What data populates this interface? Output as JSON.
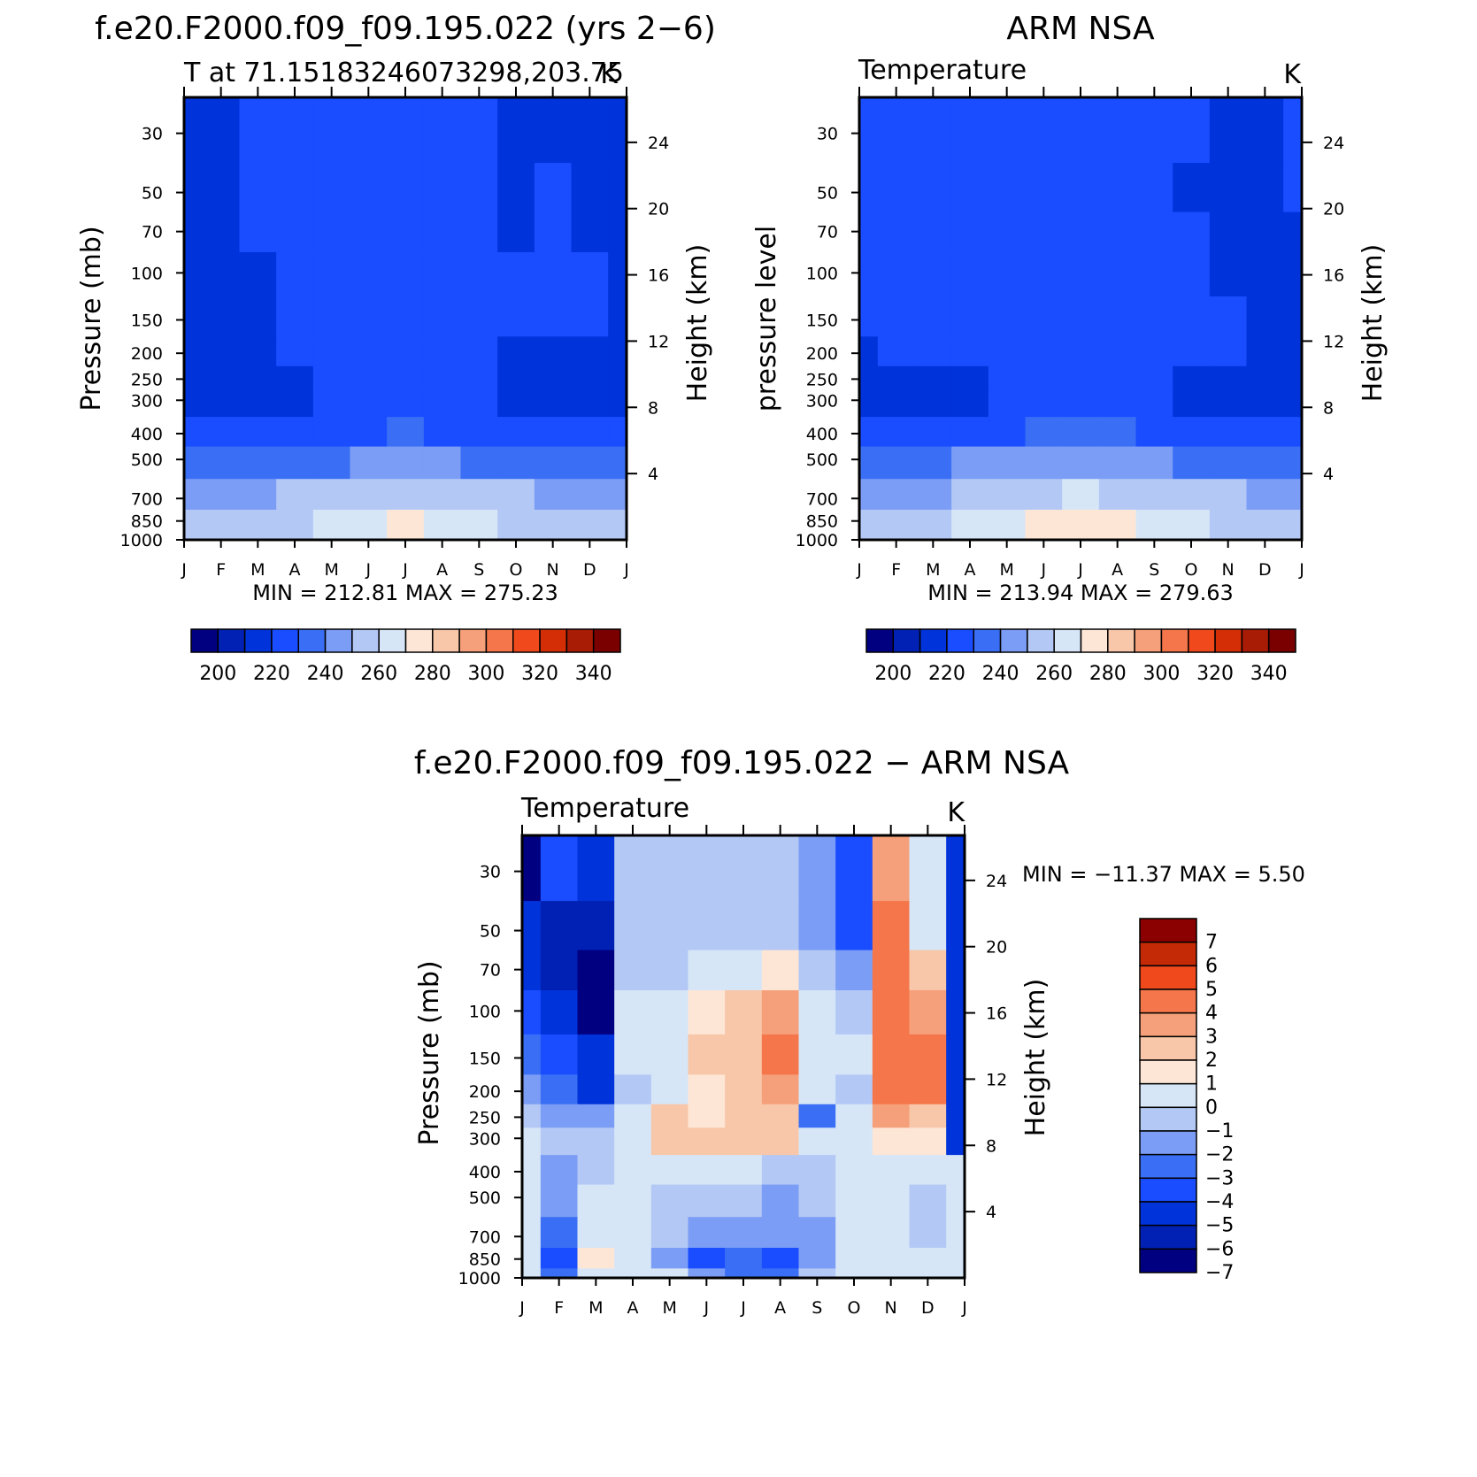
{
  "colors": {
    "temp_palette": [
      "#000080",
      "#0021b3",
      "#0033d9",
      "#1a4dff",
      "#3a6ff5",
      "#7b9df5",
      "#b3c8f5",
      "#d6e6f7",
      "#fde6d6",
      "#f8c6a8",
      "#f5a07a",
      "#f5764a",
      "#f04a1c",
      "#d42e06",
      "#a81c06",
      "#7a0000"
    ],
    "diff_palette": [
      "#000080",
      "#0021b3",
      "#0033d9",
      "#1a4dff",
      "#3a6ff5",
      "#7b9df5",
      "#b3c8f5",
      "#d6e6f7",
      "#fde6d6",
      "#f8c6a8",
      "#f5a07a",
      "#f5764a",
      "#f04a1c",
      "#c42a06",
      "#8b0000"
    ]
  },
  "chart_data": [
    {
      "id": "model",
      "type": "heatmap",
      "main_title": "f.e20.F2000.f09_f09.195.022 (yrs 2−6)",
      "subtitle": "T at 71.15183246073298,203.75",
      "units": "K",
      "ylabel_left": "Pressure (mb)",
      "ylabel_right": "Height (km)",
      "stats": "MIN = 212.81 MAX = 275.23",
      "months": [
        "J",
        "F",
        "M",
        "A",
        "M",
        "J",
        "J",
        "A",
        "S",
        "O",
        "N",
        "D",
        "J"
      ],
      "pressure_ticks": [
        "30",
        "50",
        "70",
        "100",
        "150",
        "200",
        "250",
        "300",
        "400",
        "500",
        "700",
        "850",
        "1000"
      ],
      "height_ticks": [
        "24",
        "20",
        "16",
        "12",
        "8",
        "4"
      ],
      "colorbar_labels": [
        "200",
        "220",
        "240",
        "260",
        "280",
        "300",
        "320",
        "340"
      ],
      "levels": [
        190,
        200,
        210,
        220,
        230,
        240,
        250,
        260,
        270,
        280,
        290,
        300,
        310,
        320,
        330,
        340,
        350
      ],
      "pressure_levels": [
        30,
        50,
        70,
        100,
        150,
        200,
        250,
        300,
        400,
        500,
        700,
        850,
        1000
      ],
      "values": [
        [
          217,
          218,
          221,
          221,
          221,
          221,
          221,
          221,
          220,
          219,
          218,
          217,
          217
        ],
        [
          216,
          217,
          220,
          221,
          221,
          221,
          221,
          221,
          221,
          219,
          220,
          218,
          216
        ],
        [
          216,
          217,
          220,
          221,
          221,
          221,
          221,
          221,
          221,
          219,
          221,
          219,
          216
        ],
        [
          216,
          216,
          219,
          221,
          221,
          221,
          221,
          221,
          221,
          220,
          221,
          220,
          216
        ],
        [
          216,
          216,
          219,
          221,
          221,
          221,
          221,
          221,
          221,
          220,
          220,
          221,
          216
        ],
        [
          216,
          216,
          218,
          221,
          221,
          221,
          221,
          221,
          221,
          219,
          218,
          218,
          216
        ],
        [
          216,
          216,
          217,
          219,
          221,
          221,
          221,
          221,
          220,
          218,
          217,
          217,
          216
        ],
        [
          216,
          216,
          217,
          218,
          221,
          222,
          223,
          222,
          220,
          218,
          218,
          218,
          217
        ],
        [
          223,
          224,
          225,
          226,
          228,
          229,
          231,
          229,
          227,
          226,
          225,
          224,
          223
        ],
        [
          234,
          233,
          235,
          237,
          239,
          241,
          243,
          241,
          239,
          237,
          236,
          235,
          234
        ],
        [
          247,
          245,
          248,
          250,
          253,
          256,
          258,
          256,
          253,
          250,
          249,
          248,
          247
        ],
        [
          252,
          251,
          254,
          257,
          262,
          267,
          272,
          267,
          262,
          259,
          253,
          252,
          252
        ],
        [
          254,
          250,
          253,
          256,
          263,
          267,
          271,
          266,
          263,
          258,
          254,
          253,
          254
        ]
      ]
    },
    {
      "id": "obs",
      "type": "heatmap",
      "main_title": "ARM NSA",
      "subtitle": "Temperature",
      "units": "K",
      "ylabel_left": "pressure level",
      "ylabel_right": "Height (km)",
      "stats": "MIN = 213.94 MAX = 279.63",
      "months": [
        "J",
        "F",
        "M",
        "A",
        "M",
        "J",
        "J",
        "A",
        "S",
        "O",
        "N",
        "D",
        "J"
      ],
      "pressure_ticks": [
        "30",
        "50",
        "70",
        "100",
        "150",
        "200",
        "250",
        "300",
        "400",
        "500",
        "700",
        "850",
        "1000"
      ],
      "height_ticks": [
        "24",
        "20",
        "16",
        "12",
        "8",
        "4"
      ],
      "colorbar_labels": [
        "200",
        "220",
        "240",
        "260",
        "280",
        "300",
        "320",
        "340"
      ],
      "levels": [
        190,
        200,
        210,
        220,
        230,
        240,
        250,
        260,
        270,
        280,
        290,
        300,
        310,
        320,
        330,
        340,
        350
      ],
      "pressure_levels": [
        30,
        50,
        70,
        100,
        150,
        200,
        250,
        300,
        400,
        500,
        700,
        850,
        1000
      ],
      "values": [
        [
          221,
          221,
          221,
          221,
          221,
          221,
          221,
          221,
          221,
          220,
          218,
          218,
          221
        ],
        [
          221,
          221,
          221,
          221,
          221,
          221,
          221,
          221,
          221,
          219,
          218,
          218,
          220
        ],
        [
          221,
          221,
          221,
          221,
          221,
          221,
          221,
          221,
          221,
          221,
          218,
          218,
          219
        ],
        [
          221,
          221,
          221,
          221,
          221,
          221,
          221,
          221,
          221,
          221,
          219,
          218,
          218
        ],
        [
          221,
          221,
          221,
          221,
          221,
          221,
          221,
          221,
          221,
          221,
          220,
          218,
          218
        ],
        [
          219,
          221,
          221,
          221,
          221,
          221,
          221,
          221,
          221,
          221,
          221,
          218,
          218
        ],
        [
          217,
          218,
          218,
          218,
          221,
          221,
          221,
          221,
          221,
          219,
          218,
          218,
          218
        ],
        [
          216,
          216,
          216,
          218,
          221,
          221,
          221,
          221,
          220,
          218,
          218,
          218,
          218
        ],
        [
          223,
          222,
          223,
          225,
          228,
          230,
          232,
          230,
          228,
          225,
          223,
          223,
          223
        ],
        [
          236,
          234,
          236,
          240,
          242,
          245,
          246,
          244,
          242,
          238,
          236,
          235,
          236
        ],
        [
          248,
          247,
          248,
          252,
          256,
          259,
          260,
          258,
          256,
          253,
          250,
          248,
          248
        ],
        [
          256,
          255,
          256,
          260,
          267,
          270,
          271,
          270,
          267,
          262,
          258,
          256,
          256
        ],
        [
          259,
          258,
          259,
          264,
          269,
          274,
          275,
          274,
          269,
          264,
          259,
          259,
          259
        ]
      ]
    },
    {
      "id": "diff",
      "type": "heatmap",
      "main_title": "f.e20.F2000.f09_f09.195.022 − ARM NSA",
      "subtitle": "Temperature",
      "units": "K",
      "ylabel_left": "Pressure (mb)",
      "ylabel_right": "Height (km)",
      "stats": "MIN = −11.37 MAX = 5.50",
      "months": [
        "J",
        "F",
        "M",
        "A",
        "M",
        "J",
        "J",
        "A",
        "S",
        "O",
        "N",
        "D",
        "J"
      ],
      "pressure_ticks": [
        "30",
        "50",
        "70",
        "100",
        "150",
        "200",
        "250",
        "300",
        "400",
        "500",
        "700",
        "850",
        "1000"
      ],
      "height_ticks": [
        "24",
        "20",
        "16",
        "12",
        "8",
        "4"
      ],
      "colorbar_labels": [
        "7",
        "6",
        "5",
        "4",
        "3",
        "2",
        "1",
        "0",
        "−1",
        "−2",
        "−3",
        "−4",
        "−5",
        "−6",
        "−7"
      ],
      "levels": [
        -8,
        -7,
        -6,
        -5,
        -4,
        -3,
        -2,
        -1,
        0,
        1,
        2,
        3,
        4,
        5,
        6,
        7
      ],
      "pressure_levels": [
        30,
        50,
        70,
        100,
        150,
        200,
        250,
        300,
        400,
        500,
        700,
        850,
        1000
      ],
      "values": [
        [
          -8,
          -5,
          -6,
          -2,
          -2,
          -2,
          -2,
          -2,
          -3,
          -5,
          2.5,
          -1,
          -6
        ],
        [
          -6,
          -7,
          -6.5,
          -2,
          -1.5,
          -1.5,
          -1.5,
          -1.5,
          -2.5,
          -5,
          3,
          -1,
          -6
        ],
        [
          -6,
          -7,
          -8,
          -2,
          -1.5,
          -1,
          -0.5,
          0.5,
          -1.5,
          -3,
          3,
          1.5,
          -6
        ],
        [
          -5,
          -6,
          -7.5,
          -1,
          -0.5,
          0.5,
          1,
          2,
          -0.5,
          -2,
          3.5,
          2.5,
          -6
        ],
        [
          -4,
          -5,
          -6,
          -1,
          -0.5,
          1,
          1.5,
          3.5,
          -0.5,
          -1,
          3.5,
          3.5,
          -6
        ],
        [
          -3,
          -4,
          -5.5,
          -2,
          -1,
          0.5,
          1,
          2,
          -1,
          -1.5,
          3,
          3,
          -6
        ],
        [
          -1.5,
          -2.5,
          -3,
          -1,
          1,
          0.5,
          1.5,
          1.5,
          -3.5,
          -1,
          2,
          1.5,
          -6
        ],
        [
          -1,
          -1.5,
          -1.5,
          -1,
          1.2,
          1,
          1.5,
          1,
          -1,
          -0.5,
          0.5,
          0.5,
          -6
        ],
        [
          -1,
          -2.5,
          -1.5,
          -0.5,
          -0.5,
          -1,
          -0.5,
          -2,
          -2,
          -1,
          -1,
          -1,
          -1
        ],
        [
          -0.5,
          -3,
          -1,
          -0.5,
          -1.5,
          -2,
          -1.5,
          -2.5,
          -2,
          -0.5,
          -0.5,
          -1.5,
          -0.5
        ],
        [
          -0.5,
          -3.5,
          -0.5,
          -1,
          -1.5,
          -3,
          -2.5,
          -3,
          -2.5,
          -0.5,
          -0.5,
          -1.5,
          -0.5
        ],
        [
          -1,
          -4.5,
          0.5,
          -1,
          -2.5,
          -4.5,
          -4,
          -4.5,
          -3,
          -0.5,
          -0.5,
          -1,
          -1
        ],
        [
          -1,
          -4,
          -0.5,
          -0.5,
          -1,
          -3,
          -3.5,
          -4,
          -2,
          -0.5,
          -0.5,
          -0.5,
          -1
        ]
      ]
    }
  ]
}
